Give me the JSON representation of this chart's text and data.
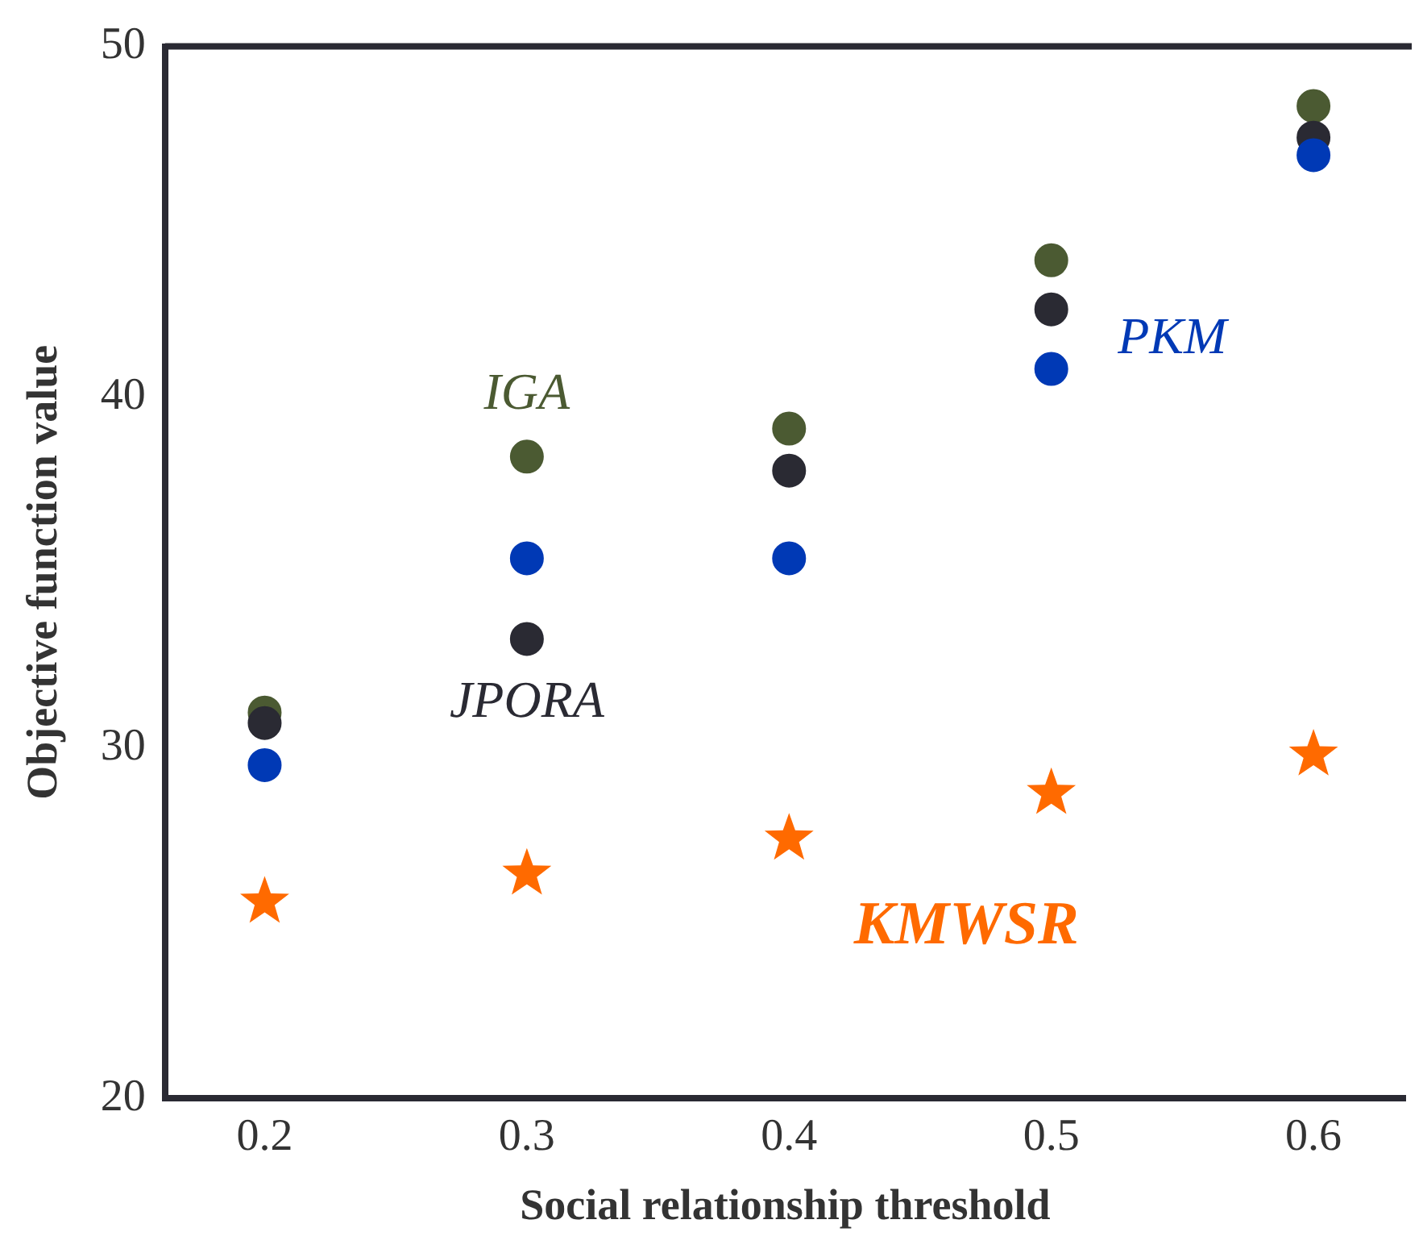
{
  "chart_data": {
    "type": "scatter",
    "xlabel": "Social relationship threshold",
    "ylabel": "Objective function value",
    "x": [
      0.2,
      0.3,
      0.4,
      0.5,
      0.6
    ],
    "xlim": [
      0.162,
      0.635
    ],
    "xticks": [
      0.2,
      0.3,
      0.4,
      0.5,
      0.6
    ],
    "ylim": [
      20,
      50
    ],
    "yticks": [
      20,
      30,
      40,
      50
    ],
    "grid": false,
    "legend": false,
    "marker": "circle",
    "series": [
      {
        "name": "IGA",
        "color": "#4b5a32",
        "values": [
          31.0,
          38.3,
          39.1,
          43.9,
          48.3
        ]
      },
      {
        "name": "JPORA",
        "color": "#2a2a33",
        "values": [
          30.7,
          33.1,
          37.9,
          42.5,
          47.4
        ]
      },
      {
        "name": "PKM",
        "color": "#0039b5",
        "values": [
          29.5,
          35.4,
          35.4,
          40.8,
          46.9
        ]
      },
      {
        "name": "KMWSR",
        "color": "#ff6a00",
        "marker": "star",
        "values": [
          25.6,
          26.4,
          27.4,
          28.7,
          29.8
        ]
      }
    ]
  }
}
